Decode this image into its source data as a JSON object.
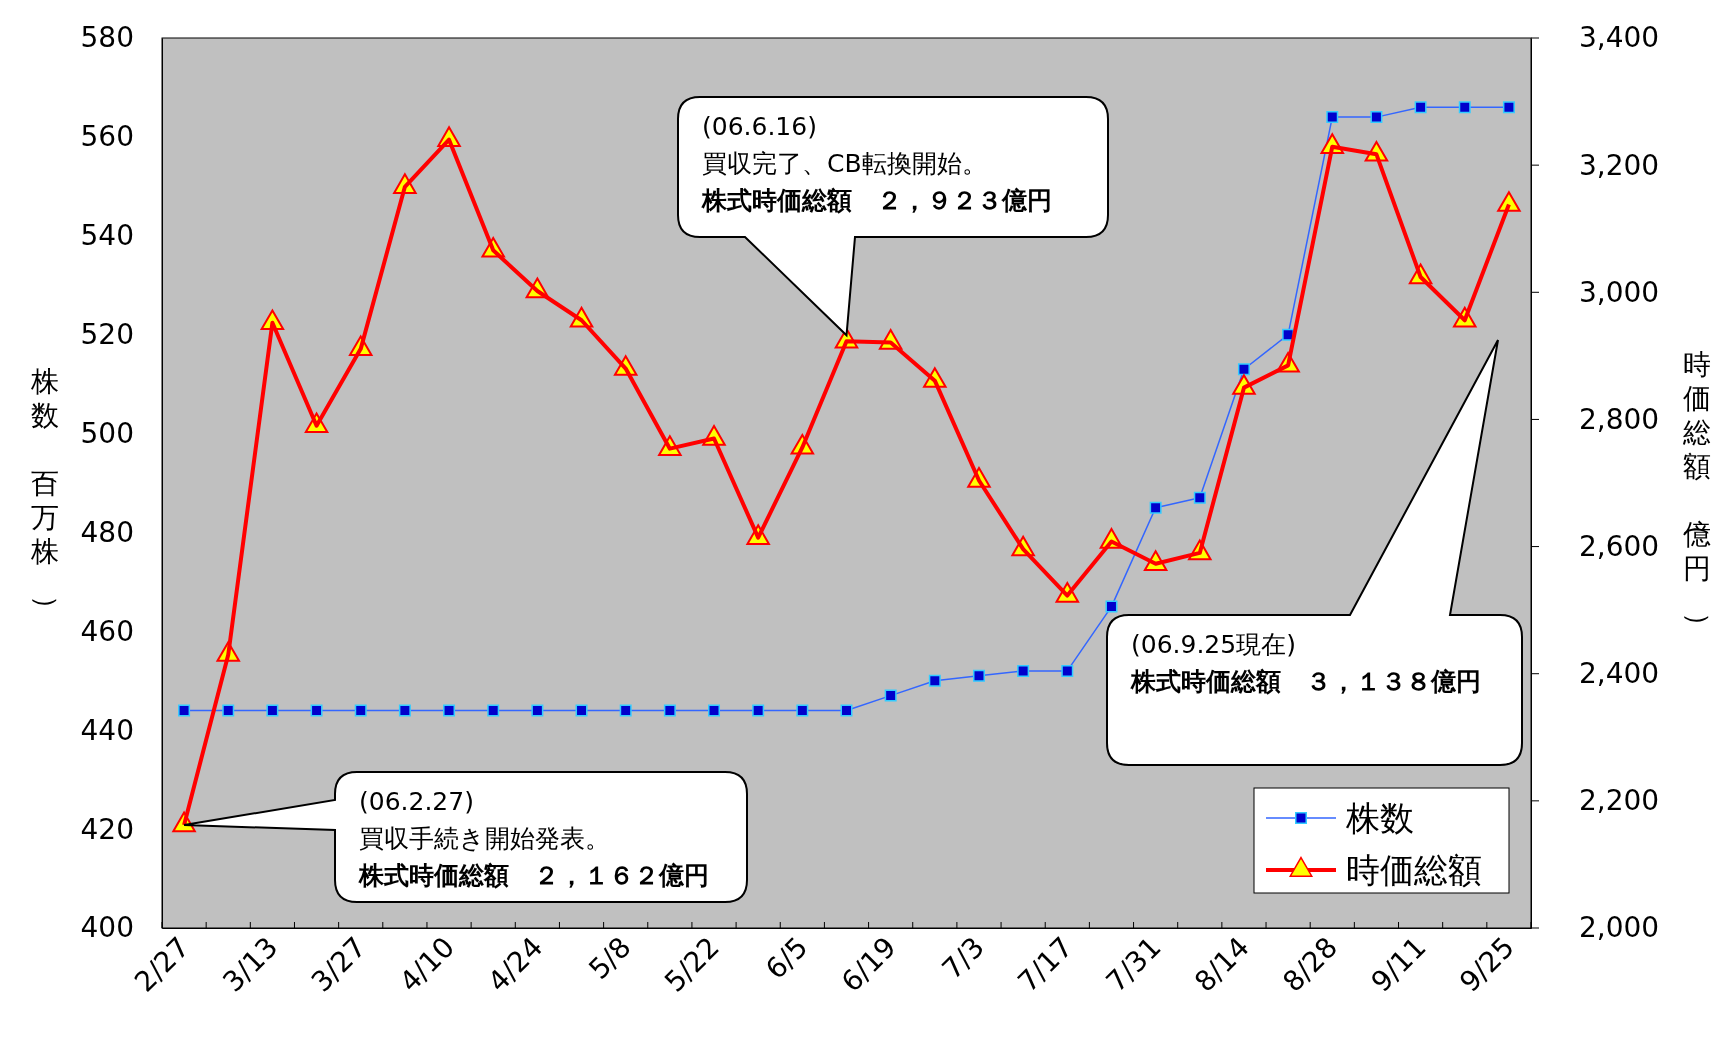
{
  "chart_data": {
    "type": "line",
    "categories": [
      "2/27",
      null,
      "3/13",
      null,
      "3/27",
      null,
      "4/10",
      null,
      "4/24",
      null,
      "5/8",
      null,
      "5/22",
      null,
      "6/5",
      null,
      "6/19",
      null,
      "7/3",
      null,
      "7/17",
      null,
      "7/31",
      null,
      "8/14",
      null,
      "8/28",
      null,
      "9/11",
      null,
      "9/25"
    ],
    "ylabel": "株数（百万株）",
    "y2label": "時価総額（億円）",
    "ylim": [
      400,
      580
    ],
    "yticks": [
      400,
      420,
      440,
      460,
      480,
      500,
      520,
      540,
      560,
      580
    ],
    "y2lim": [
      2000,
      3400
    ],
    "y2ticks": [
      {
        "value": 2000,
        "label": "2,000"
      },
      {
        "value": 2200,
        "label": "2,200"
      },
      {
        "value": 2400,
        "label": "2,400"
      },
      {
        "value": 2600,
        "label": "2,600"
      },
      {
        "value": 2800,
        "label": "2,800"
      },
      {
        "value": 3000,
        "label": "3,000"
      },
      {
        "value": 3200,
        "label": "3,200"
      },
      {
        "value": 3400,
        "label": "3,400"
      }
    ],
    "series": [
      {
        "name": "株数",
        "color": "#3366ff",
        "marker": "square",
        "values": [
          444,
          444,
          444,
          444,
          444,
          444,
          444,
          444,
          444,
          444,
          444,
          444,
          444,
          444,
          444,
          444,
          447,
          450,
          451,
          452,
          452,
          465,
          485,
          487,
          513,
          520,
          564,
          564,
          566,
          566,
          566
        ]
      },
      {
        "name": "時価総額",
        "color": "#ff0000",
        "marker": "triangle",
        "axis": "y2",
        "values": [
          2162,
          2430,
          2952,
          2790,
          2911,
          3166,
          3240,
          3066,
          3002,
          2956,
          2880,
          2754,
          2770,
          2614,
          2756,
          2923,
          2921,
          2861,
          2704,
          2596,
          2523,
          2608,
          2573,
          2590,
          2850,
          2885,
          3229,
          3217,
          3024,
          2956,
          3138
        ]
      }
    ],
    "annotations": [
      "(06.2.27)買収手続き開始発表。株式時価総額　２，１６２億円",
      "(06.6.16)買収完了、CB転換開始。株式時価総額　２，９２３億円",
      "(06.9.25現在)株式時価総額　３，１３８億円"
    ],
    "grid": false,
    "legend": "bottom right",
    "line_style": "solid"
  }
}
